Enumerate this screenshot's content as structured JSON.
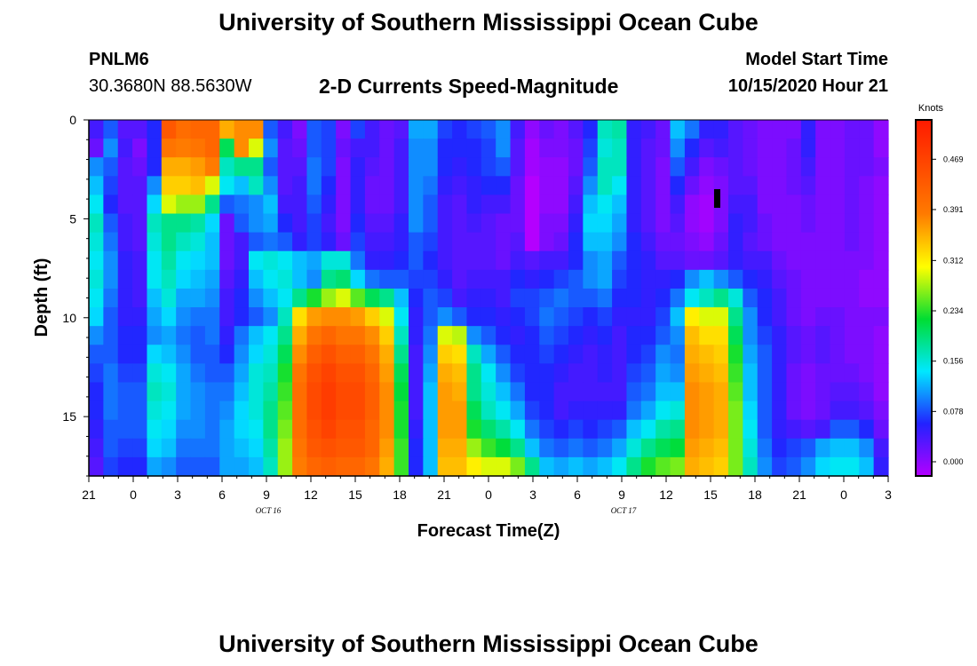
{
  "header": {
    "title": "University of Southern Mississippi Ocean Cube",
    "station": "PNLM6",
    "coords": "30.3680N 88.5630W",
    "subtitle": "2-D Currents Speed-Magnitude",
    "model_label": "Model Start Time",
    "model_time": "10/15/2020 Hour 21"
  },
  "footer": {
    "title": "University of Southern Mississippi Ocean Cube"
  },
  "chart_data": {
    "type": "heatmap",
    "title": "2-D Currents Speed-Magnitude",
    "xlabel": "Forecast Time(Z)",
    "ylabel": "Depth (ft)",
    "x_tick_labels": [
      "21",
      "0",
      "3",
      "6",
      "9",
      "12",
      "15",
      "18",
      "21",
      "0",
      "3",
      "6",
      "9",
      "12",
      "15",
      "18",
      "21",
      "0",
      "3"
    ],
    "x_range_hours_from_start": [
      0,
      54
    ],
    "day_labels": [
      {
        "text": "OCT 16",
        "hour": 15
      },
      {
        "text": "OCT 17",
        "hour": 39
      }
    ],
    "y_ticks": [
      "0",
      "5",
      "10",
      "15"
    ],
    "y_range_ft": [
      0,
      18
    ],
    "y_inverted": true,
    "colorbar": {
      "label": "Knots",
      "ticks": [
        "0.000",
        "0.078",
        "0.156",
        "0.234",
        "0.312",
        "0.391",
        "0.469"
      ],
      "tick_values": [
        0,
        0.078,
        0.156,
        0.234,
        0.312,
        0.391,
        0.469
      ],
      "max": 0.53,
      "stops": [
        "#b400ff",
        "#2222ff",
        "#00e8ff",
        "#00dd33",
        "#ffff00",
        "#ff7a00",
        "#ff1a00"
      ]
    },
    "value_grid_description": "rows = depth 0 to 18 ft, columns = forecast hour 0 to 54, values in knots",
    "values": [
      [
        0.06,
        0.1,
        0.05,
        0.05,
        0.08,
        0.44,
        0.41,
        0.42,
        0.42,
        0.36,
        0.38,
        0.38,
        0.1,
        0.06,
        0.03,
        0.1,
        0.09,
        0.03,
        0.09,
        0.06,
        0.04,
        0.05,
        0.13,
        0.13,
        0.09,
        0.08,
        0.09,
        0.1,
        0.12,
        0.06,
        0.02,
        0.04,
        0.03,
        0.05,
        0.08,
        0.18,
        0.19,
        0.07,
        0.06,
        0.04,
        0.14,
        0.11,
        0.07,
        0.07,
        0.05,
        0.04,
        0.03,
        0.03,
        0.03,
        0.07,
        0.03,
        0.03,
        0.04,
        0.04,
        0.02
      ],
      [
        0.04,
        0.12,
        0.06,
        0.03,
        0.08,
        0.4,
        0.39,
        0.4,
        0.42,
        0.22,
        0.38,
        0.3,
        0.12,
        0.05,
        0.04,
        0.1,
        0.09,
        0.04,
        0.06,
        0.06,
        0.04,
        0.06,
        0.12,
        0.12,
        0.08,
        0.08,
        0.08,
        0.09,
        0.12,
        0.05,
        0.01,
        0.03,
        0.03,
        0.04,
        0.09,
        0.17,
        0.18,
        0.07,
        0.05,
        0.04,
        0.12,
        0.08,
        0.05,
        0.06,
        0.05,
        0.04,
        0.03,
        0.03,
        0.04,
        0.07,
        0.03,
        0.03,
        0.04,
        0.04,
        0.02
      ],
      [
        0.12,
        0.1,
        0.05,
        0.04,
        0.08,
        0.36,
        0.36,
        0.37,
        0.39,
        0.18,
        0.2,
        0.2,
        0.1,
        0.05,
        0.05,
        0.11,
        0.09,
        0.03,
        0.07,
        0.05,
        0.04,
        0.06,
        0.12,
        0.12,
        0.08,
        0.07,
        0.08,
        0.09,
        0.1,
        0.05,
        0.01,
        0.02,
        0.02,
        0.04,
        0.1,
        0.18,
        0.18,
        0.07,
        0.05,
        0.03,
        0.1,
        0.06,
        0.03,
        0.04,
        0.05,
        0.04,
        0.03,
        0.03,
        0.04,
        0.06,
        0.03,
        0.03,
        0.04,
        0.04,
        0.03
      ],
      [
        0.14,
        0.09,
        0.05,
        0.05,
        0.12,
        0.34,
        0.34,
        0.35,
        0.3,
        0.16,
        0.14,
        0.18,
        0.12,
        0.05,
        0.06,
        0.11,
        0.08,
        0.03,
        0.07,
        0.04,
        0.04,
        0.06,
        0.12,
        0.11,
        0.07,
        0.06,
        0.07,
        0.08,
        0.08,
        0.04,
        0.0,
        0.02,
        0.02,
        0.05,
        0.12,
        0.18,
        0.16,
        0.07,
        0.05,
        0.03,
        0.08,
        0.04,
        0.02,
        0.03,
        0.05,
        0.05,
        0.03,
        0.03,
        0.04,
        0.05,
        0.03,
        0.03,
        0.04,
        0.03,
        0.02
      ],
      [
        0.16,
        0.08,
        0.05,
        0.05,
        0.15,
        0.3,
        0.28,
        0.28,
        0.2,
        0.1,
        0.11,
        0.12,
        0.14,
        0.06,
        0.06,
        0.1,
        0.07,
        0.03,
        0.07,
        0.04,
        0.04,
        0.06,
        0.12,
        0.1,
        0.06,
        0.05,
        0.07,
        0.06,
        0.06,
        0.04,
        0.0,
        0.02,
        0.02,
        0.06,
        0.14,
        0.16,
        0.14,
        0.07,
        0.05,
        0.03,
        0.06,
        0.02,
        0.01,
        0.03,
        0.06,
        0.06,
        0.03,
        0.03,
        0.03,
        0.04,
        0.03,
        0.03,
        0.04,
        0.03,
        0.02
      ],
      [
        0.18,
        0.1,
        0.06,
        0.05,
        0.18,
        0.2,
        0.2,
        0.19,
        0.15,
        0.04,
        0.1,
        0.12,
        0.13,
        0.08,
        0.06,
        0.09,
        0.06,
        0.03,
        0.08,
        0.05,
        0.05,
        0.07,
        0.12,
        0.1,
        0.06,
        0.05,
        0.06,
        0.05,
        0.04,
        0.04,
        0.0,
        0.03,
        0.03,
        0.07,
        0.15,
        0.15,
        0.13,
        0.07,
        0.05,
        0.03,
        0.05,
        0.02,
        0.01,
        0.03,
        0.07,
        0.06,
        0.04,
        0.03,
        0.03,
        0.04,
        0.03,
        0.03,
        0.04,
        0.03,
        0.02
      ],
      [
        0.17,
        0.11,
        0.06,
        0.05,
        0.17,
        0.2,
        0.18,
        0.17,
        0.14,
        0.04,
        0.06,
        0.1,
        0.11,
        0.1,
        0.07,
        0.09,
        0.07,
        0.04,
        0.09,
        0.06,
        0.06,
        0.07,
        0.1,
        0.09,
        0.06,
        0.05,
        0.05,
        0.05,
        0.04,
        0.05,
        0.0,
        0.03,
        0.04,
        0.08,
        0.14,
        0.14,
        0.12,
        0.08,
        0.06,
        0.04,
        0.04,
        0.03,
        0.02,
        0.04,
        0.07,
        0.05,
        0.04,
        0.03,
        0.03,
        0.03,
        0.03,
        0.03,
        0.04,
        0.03,
        0.02
      ],
      [
        0.16,
        0.12,
        0.07,
        0.06,
        0.16,
        0.19,
        0.16,
        0.15,
        0.14,
        0.04,
        0.06,
        0.16,
        0.17,
        0.16,
        0.14,
        0.13,
        0.17,
        0.17,
        0.11,
        0.07,
        0.07,
        0.08,
        0.1,
        0.08,
        0.06,
        0.05,
        0.05,
        0.05,
        0.04,
        0.06,
        0.05,
        0.06,
        0.06,
        0.08,
        0.12,
        0.13,
        0.1,
        0.08,
        0.07,
        0.05,
        0.05,
        0.04,
        0.04,
        0.05,
        0.07,
        0.06,
        0.06,
        0.04,
        0.03,
        0.03,
        0.03,
        0.03,
        0.03,
        0.03,
        0.02
      ],
      [
        0.17,
        0.12,
        0.07,
        0.06,
        0.16,
        0.18,
        0.15,
        0.14,
        0.13,
        0.05,
        0.07,
        0.14,
        0.16,
        0.17,
        0.14,
        0.12,
        0.2,
        0.21,
        0.15,
        0.11,
        0.1,
        0.1,
        0.09,
        0.09,
        0.07,
        0.05,
        0.06,
        0.06,
        0.06,
        0.08,
        0.07,
        0.08,
        0.09,
        0.1,
        0.12,
        0.13,
        0.09,
        0.08,
        0.07,
        0.07,
        0.08,
        0.12,
        0.14,
        0.12,
        0.1,
        0.08,
        0.07,
        0.05,
        0.04,
        0.03,
        0.03,
        0.03,
        0.03,
        0.02,
        0.02
      ],
      [
        0.16,
        0.11,
        0.07,
        0.06,
        0.14,
        0.17,
        0.13,
        0.13,
        0.12,
        0.06,
        0.08,
        0.12,
        0.14,
        0.16,
        0.2,
        0.24,
        0.28,
        0.3,
        0.26,
        0.22,
        0.2,
        0.14,
        0.08,
        0.1,
        0.09,
        0.06,
        0.07,
        0.07,
        0.06,
        0.09,
        0.09,
        0.1,
        0.11,
        0.1,
        0.1,
        0.11,
        0.08,
        0.08,
        0.07,
        0.08,
        0.11,
        0.16,
        0.18,
        0.2,
        0.17,
        0.1,
        0.08,
        0.06,
        0.04,
        0.03,
        0.03,
        0.03,
        0.03,
        0.02,
        0.02
      ],
      [
        0.15,
        0.1,
        0.07,
        0.07,
        0.13,
        0.15,
        0.12,
        0.11,
        0.11,
        0.06,
        0.08,
        0.1,
        0.12,
        0.18,
        0.33,
        0.37,
        0.38,
        0.38,
        0.37,
        0.34,
        0.3,
        0.16,
        0.07,
        0.1,
        0.12,
        0.1,
        0.08,
        0.08,
        0.07,
        0.08,
        0.09,
        0.11,
        0.1,
        0.09,
        0.08,
        0.09,
        0.07,
        0.07,
        0.07,
        0.09,
        0.14,
        0.32,
        0.3,
        0.3,
        0.2,
        0.12,
        0.08,
        0.06,
        0.04,
        0.03,
        0.04,
        0.04,
        0.03,
        0.03,
        0.03
      ],
      [
        0.12,
        0.1,
        0.08,
        0.08,
        0.12,
        0.13,
        0.11,
        0.1,
        0.11,
        0.07,
        0.11,
        0.14,
        0.16,
        0.2,
        0.36,
        0.4,
        0.42,
        0.4,
        0.4,
        0.38,
        0.34,
        0.18,
        0.07,
        0.11,
        0.3,
        0.29,
        0.12,
        0.1,
        0.08,
        0.07,
        0.08,
        0.1,
        0.09,
        0.08,
        0.07,
        0.08,
        0.06,
        0.08,
        0.08,
        0.1,
        0.12,
        0.35,
        0.33,
        0.33,
        0.22,
        0.12,
        0.09,
        0.07,
        0.05,
        0.04,
        0.05,
        0.04,
        0.03,
        0.03,
        0.02
      ],
      [
        0.1,
        0.1,
        0.08,
        0.08,
        0.15,
        0.14,
        0.12,
        0.1,
        0.1,
        0.08,
        0.12,
        0.15,
        0.17,
        0.22,
        0.38,
        0.43,
        0.45,
        0.43,
        0.43,
        0.4,
        0.36,
        0.2,
        0.06,
        0.12,
        0.34,
        0.33,
        0.18,
        0.13,
        0.1,
        0.08,
        0.08,
        0.09,
        0.08,
        0.07,
        0.06,
        0.07,
        0.06,
        0.08,
        0.09,
        0.12,
        0.11,
        0.36,
        0.35,
        0.34,
        0.24,
        0.13,
        0.1,
        0.07,
        0.05,
        0.04,
        0.05,
        0.04,
        0.03,
        0.03,
        0.02
      ],
      [
        0.09,
        0.11,
        0.09,
        0.09,
        0.17,
        0.16,
        0.13,
        0.11,
        0.1,
        0.1,
        0.13,
        0.17,
        0.18,
        0.24,
        0.4,
        0.45,
        0.47,
        0.45,
        0.45,
        0.42,
        0.37,
        0.22,
        0.06,
        0.13,
        0.36,
        0.35,
        0.2,
        0.16,
        0.12,
        0.09,
        0.08,
        0.08,
        0.07,
        0.06,
        0.06,
        0.07,
        0.06,
        0.09,
        0.1,
        0.13,
        0.12,
        0.37,
        0.36,
        0.35,
        0.25,
        0.14,
        0.1,
        0.07,
        0.04,
        0.03,
        0.04,
        0.04,
        0.04,
        0.03,
        0.02
      ],
      [
        0.08,
        0.11,
        0.1,
        0.1,
        0.18,
        0.17,
        0.13,
        0.12,
        0.11,
        0.11,
        0.14,
        0.17,
        0.19,
        0.25,
        0.41,
        0.46,
        0.48,
        0.46,
        0.46,
        0.43,
        0.38,
        0.23,
        0.06,
        0.14,
        0.37,
        0.36,
        0.2,
        0.17,
        0.14,
        0.11,
        0.08,
        0.08,
        0.06,
        0.06,
        0.06,
        0.06,
        0.06,
        0.1,
        0.11,
        0.14,
        0.14,
        0.38,
        0.37,
        0.36,
        0.26,
        0.14,
        0.1,
        0.07,
        0.04,
        0.03,
        0.04,
        0.05,
        0.05,
        0.04,
        0.02
      ],
      [
        0.08,
        0.11,
        0.1,
        0.1,
        0.17,
        0.16,
        0.13,
        0.12,
        0.11,
        0.12,
        0.15,
        0.17,
        0.2,
        0.26,
        0.41,
        0.46,
        0.48,
        0.46,
        0.46,
        0.43,
        0.38,
        0.24,
        0.06,
        0.14,
        0.37,
        0.37,
        0.22,
        0.18,
        0.16,
        0.13,
        0.09,
        0.08,
        0.06,
        0.07,
        0.07,
        0.07,
        0.07,
        0.11,
        0.13,
        0.16,
        0.17,
        0.38,
        0.37,
        0.36,
        0.27,
        0.15,
        0.1,
        0.07,
        0.04,
        0.03,
        0.04,
        0.06,
        0.06,
        0.05,
        0.03
      ],
      [
        0.07,
        0.1,
        0.1,
        0.1,
        0.16,
        0.15,
        0.12,
        0.12,
        0.11,
        0.13,
        0.15,
        0.16,
        0.2,
        0.27,
        0.41,
        0.45,
        0.47,
        0.45,
        0.45,
        0.42,
        0.38,
        0.24,
        0.07,
        0.14,
        0.37,
        0.37,
        0.24,
        0.21,
        0.19,
        0.16,
        0.11,
        0.09,
        0.08,
        0.09,
        0.08,
        0.09,
        0.1,
        0.14,
        0.16,
        0.19,
        0.2,
        0.38,
        0.37,
        0.36,
        0.27,
        0.16,
        0.1,
        0.07,
        0.06,
        0.05,
        0.06,
        0.1,
        0.1,
        0.08,
        0.04
      ],
      [
        0.06,
        0.1,
        0.09,
        0.09,
        0.15,
        0.14,
        0.11,
        0.11,
        0.11,
        0.13,
        0.14,
        0.15,
        0.19,
        0.28,
        0.4,
        0.44,
        0.45,
        0.44,
        0.44,
        0.42,
        0.37,
        0.25,
        0.08,
        0.14,
        0.36,
        0.36,
        0.28,
        0.25,
        0.23,
        0.2,
        0.14,
        0.11,
        0.1,
        0.11,
        0.1,
        0.11,
        0.13,
        0.17,
        0.2,
        0.22,
        0.23,
        0.37,
        0.36,
        0.35,
        0.27,
        0.17,
        0.11,
        0.08,
        0.09,
        0.1,
        0.13,
        0.14,
        0.14,
        0.12,
        0.06
      ],
      [
        0.05,
        0.09,
        0.08,
        0.08,
        0.13,
        0.12,
        0.1,
        0.1,
        0.1,
        0.13,
        0.13,
        0.14,
        0.18,
        0.28,
        0.39,
        0.42,
        0.43,
        0.42,
        0.42,
        0.4,
        0.36,
        0.25,
        0.08,
        0.14,
        0.35,
        0.35,
        0.32,
        0.3,
        0.3,
        0.27,
        0.2,
        0.14,
        0.13,
        0.14,
        0.13,
        0.14,
        0.16,
        0.2,
        0.24,
        0.26,
        0.27,
        0.36,
        0.35,
        0.34,
        0.27,
        0.18,
        0.12,
        0.09,
        0.1,
        0.12,
        0.15,
        0.16,
        0.16,
        0.14,
        0.07
      ]
    ],
    "annotation": "small black marker at hour 42.5, depth 4 ft"
  }
}
